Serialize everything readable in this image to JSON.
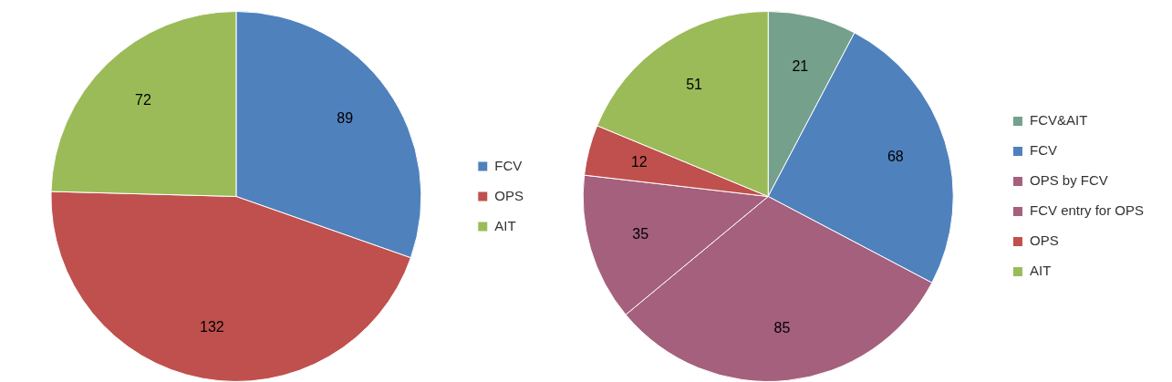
{
  "chart_data": [
    {
      "type": "pie",
      "categories": [
        "FCV",
        "OPS",
        "AIT"
      ],
      "values": [
        89,
        132,
        72
      ],
      "colors": [
        "#4f81bd",
        "#c0504d",
        "#9bbb59"
      ],
      "legend": "right",
      "data_labels": true
    },
    {
      "type": "pie",
      "categories": [
        "FCV&AIT",
        "FCV",
        "OPS by FCV",
        "FCV entry for OPS",
        "OPS",
        "AIT"
      ],
      "values": [
        21,
        68,
        85,
        35,
        12,
        51
      ],
      "colors": [
        "#75a08b",
        "#4f81bd",
        "#a4607c",
        "#a4607c",
        "#c0504d",
        "#9bbb59"
      ],
      "legend": "right",
      "data_labels": true
    }
  ]
}
